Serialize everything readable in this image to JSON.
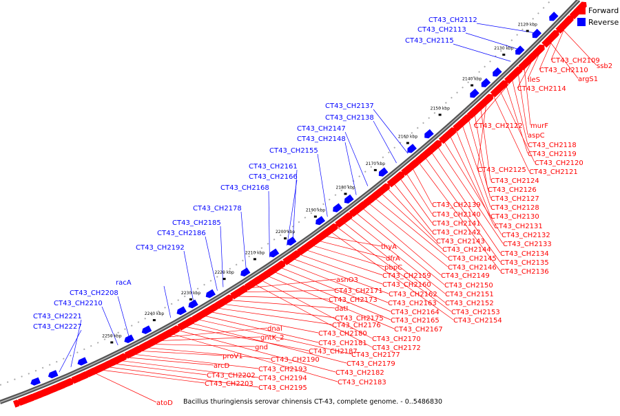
{
  "legend": {
    "forward_label": "Forward",
    "reverse_label": "Reverse",
    "forward_color": "#ff0000",
    "reverse_color": "#0000ff"
  },
  "caption": "Bacillus thuringiensis serovar chinensis CT-43, complete genome. - 0..5486830",
  "ticks": [
    "2120 kbp",
    "2130 kbp",
    "2140 kbp",
    "2150 kbp",
    "2160 kbp",
    "2170 kbp",
    "2180 kbp",
    "2190 kbp",
    "2200 kbp",
    "2210 kbp",
    "2220 kbp",
    "2230 kbp",
    "2240 kbp",
    "2250 kbp"
  ],
  "reverse_genes": [
    "CT43_CH2112",
    "CT43_CH2113",
    "CT43_CH2115",
    "CT43_CH2137",
    "CT43_CH2138",
    "CT43_CH2147",
    "CT43_CH2148",
    "CT43_CH2155",
    "CT43_CH2161",
    "CT43_CH2166",
    "CT43_CH2168",
    "CT43_CH2178",
    "CT43_CH2185",
    "CT43_CH2186",
    "CT43_CH2192",
    "racA",
    "CT43_CH2208",
    "CT43_CH2210",
    "CT43_CH2221",
    "CT43_CH2227"
  ],
  "forward_genes": [
    "CT43_CH2109",
    "ssb2",
    "CT43_CH2110",
    "argS1",
    "ileS",
    "CT43_CH2114",
    "CT43_CH2122",
    "murF",
    "aspC",
    "CT43_CH2118",
    "CT43_CH2119",
    "CT43_CH2120",
    "CT43_CH2121",
    "CT43_CH2125",
    "CT43_CH2124",
    "CT43_CH2126",
    "CT43_CH2127",
    "CT43_CH2128",
    "CT43_CH2130",
    "CT43_CH2131",
    "CT43_CH2132",
    "CT43_CH2133",
    "CT43_CH2134",
    "CT43_CH2135",
    "CT43_CH2136",
    "CT43_CH2139",
    "CT43_CH2140",
    "CT43_CH2141",
    "CT43_CH2142",
    "CT43_CH2143",
    "CT43_CH2144",
    "CT43_CH2145",
    "CT43_CH2146",
    "CT43_CH2149",
    "CT43_CH2150",
    "CT43_CH2151",
    "CT43_CH2152",
    "CT43_CH2153",
    "CT43_CH2154",
    "thyA",
    "dfrA",
    "pbpC",
    "CT43_CH2159",
    "CT43_CH2160",
    "CT43_CH2162",
    "CT43_CH2163",
    "CT43_CH2164",
    "CT43_CH2165",
    "CT43_CH2167",
    "CT43_CH2170",
    "CT43_CH2172",
    "asnO3",
    "CT43_CH2171",
    "CT43_CH2173",
    "datI",
    "CT43_CH2175",
    "CT43_CH2176",
    "CT43_CH2180",
    "CT43_CH2181",
    "CT43_CH2177",
    "CT43_CH2179",
    "CT43_CH2187",
    "CT43_CH2182",
    "CT43_CH2183",
    "dnaI",
    "gntK_2",
    "gnd",
    "CT43_CH2190",
    "proV1",
    "CT43_CH2193",
    "arcD",
    "CT43_CH2194",
    "CT43_CH2202",
    "CT43_CH2195",
    "CT43_CH2203",
    "atoD"
  ]
}
